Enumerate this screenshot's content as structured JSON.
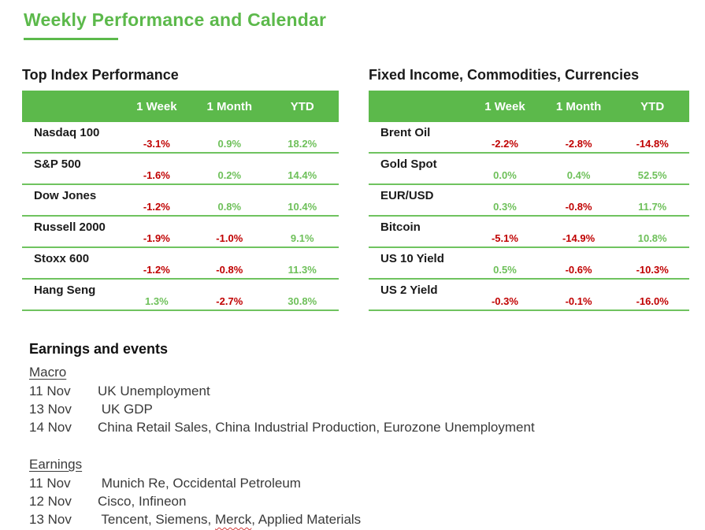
{
  "title": "Weekly Performance and Calendar",
  "colors": {
    "accent_green": "#5CB94B",
    "line_green": "#6FC35F",
    "positive": "#6EC05A",
    "negative": "#C00000"
  },
  "index_table": {
    "heading": "Top Index Performance",
    "columns": [
      "1 Week",
      "1 Month",
      "YTD"
    ],
    "rows": [
      {
        "label": "Nasdaq 100",
        "values": [
          "-3.1%",
          "0.9%",
          "18.2%"
        ]
      },
      {
        "label": "S&P 500",
        "values": [
          "-1.6%",
          "0.2%",
          "14.4%"
        ]
      },
      {
        "label": "Dow Jones",
        "values": [
          "-1.2%",
          "0.8%",
          "10.4%"
        ]
      },
      {
        "label": "Russell 2000",
        "values": [
          "-1.9%",
          "-1.0%",
          "9.1%"
        ]
      },
      {
        "label": "Stoxx 600",
        "values": [
          "-1.2%",
          "-0.8%",
          "11.3%"
        ]
      },
      {
        "label": "Hang Seng",
        "values": [
          "1.3%",
          "-2.7%",
          "30.8%"
        ]
      }
    ]
  },
  "ficc_table": {
    "heading": "Fixed Income, Commodities, Currencies",
    "columns": [
      "1 Week",
      "1 Month",
      "YTD"
    ],
    "rows": [
      {
        "label": "Brent Oil",
        "values": [
          "-2.2%",
          "-2.8%",
          "-14.8%"
        ]
      },
      {
        "label": "Gold Spot",
        "values": [
          "0.0%",
          "0.4%",
          "52.5%"
        ]
      },
      {
        "label": "EUR/USD",
        "values": [
          "0.3%",
          "-0.8%",
          "11.7%"
        ]
      },
      {
        "label": "Bitcoin",
        "values": [
          "-5.1%",
          "-14.9%",
          "10.8%"
        ]
      },
      {
        "label": "US 10 Yield",
        "values": [
          "0.5%",
          "-0.6%",
          "-10.3%"
        ]
      },
      {
        "label": "US 2 Yield",
        "values": [
          "-0.3%",
          "-0.1%",
          "-16.0%"
        ]
      }
    ]
  },
  "events": {
    "heading": "Earnings and events",
    "macro": {
      "title": "Macro",
      "items": [
        {
          "date": "11 Nov",
          "text": "UK Unemployment"
        },
        {
          "date": "13 Nov",
          "text": " UK GDP"
        },
        {
          "date": "14 Nov",
          "text": "China Retail Sales, China Industrial Production, Eurozone Unemployment"
        }
      ]
    },
    "earnings": {
      "title": "Earnings",
      "items": [
        {
          "date": "11 Nov",
          "text": " Munich Re, Occidental Petroleum"
        },
        {
          "date": "12 Nov",
          "text": "Cisco, Infineon"
        },
        {
          "date": "13 Nov",
          "text_pre": " Tencent, Siemens, ",
          "squiggle_word": "Merck",
          "text_post": ", Applied Materials"
        }
      ]
    }
  }
}
